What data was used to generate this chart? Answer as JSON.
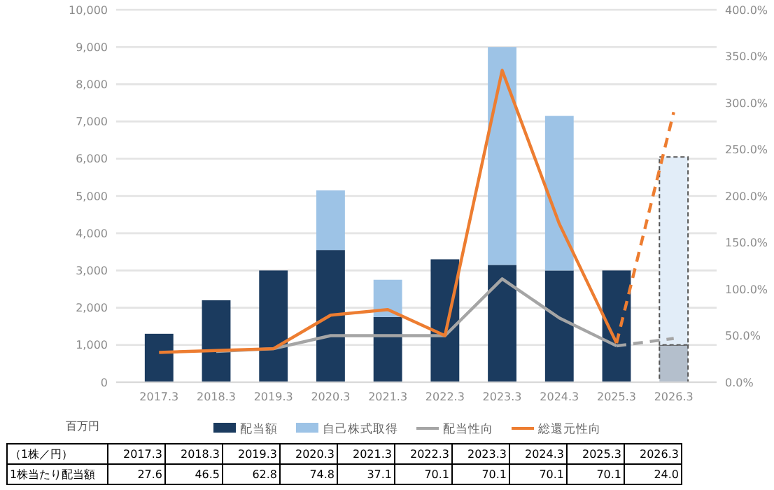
{
  "chart_data": {
    "type": "bar",
    "stacked": true,
    "ylabel": "百万円",
    "legend": "bottom",
    "grid": "y",
    "categories": [
      "2017.3",
      "2018.3",
      "2019.3",
      "2020.3",
      "2021.3",
      "2022.3",
      "2023.3",
      "2024.3",
      "2025.3",
      "2026.3"
    ],
    "ylim": [
      0,
      10000
    ],
    "yticks": [
      0,
      {
        "value": 1000,
        "label": "1,000"
      },
      {
        "value": 2000,
        "label": "2,000"
      },
      {
        "value": 3000,
        "label": "3,000"
      },
      {
        "value": 4000,
        "label": "4,000"
      },
      {
        "value": 5000,
        "label": "5,000"
      },
      {
        "value": 6000,
        "label": "6,000"
      },
      {
        "value": 7000,
        "label": "7,000"
      },
      {
        "value": 8000,
        "label": "8,000"
      },
      {
        "value": 9000,
        "label": "9,000"
      },
      {
        "value": 10000,
        "label": "10,000"
      }
    ],
    "y2lim": [
      0,
      400
    ],
    "y2ticks": [
      {
        "value": 0,
        "label": "0.0%"
      },
      {
        "value": 50,
        "label": "50.0%"
      },
      {
        "value": 100,
        "label": "100.0%"
      },
      {
        "value": 150,
        "label": "150.0%"
      },
      {
        "value": 200,
        "label": "200.0%"
      },
      {
        "value": 250,
        "label": "250.0%"
      },
      {
        "value": 300,
        "label": "300.0%"
      },
      {
        "value": 350,
        "label": "350.0%"
      },
      {
        "value": 400,
        "label": "400.0%"
      }
    ],
    "series": [
      {
        "name": "配当額",
        "color": "#1b3b5f",
        "colors": [
          "#1b3b5f",
          "#1b3b5f",
          "#1b3b5f",
          "#1b3b5f",
          "#1b3b5f",
          "#1b3b5f",
          "#1b3b5f",
          "#1b3b5f",
          "#1b3b5f",
          "#b4bfcc"
        ],
        "values": [
          1300,
          2200,
          3000,
          3550,
          1750,
          3300,
          3150,
          3000,
          3000,
          1000
        ]
      },
      {
        "name": "自己株式取得",
        "color": "#9dc3e6",
        "colors": [
          null,
          null,
          null,
          "#9dc3e6",
          "#9dc3e6",
          null,
          "#9dc3e6",
          "#9dc3e6",
          null,
          "#e2edf8"
        ],
        "values": [
          null,
          null,
          null,
          1600,
          1000,
          null,
          5850,
          4150,
          null,
          5050
        ]
      },
      {
        "name": "配当性向",
        "type": "line",
        "axis": "y2",
        "color": "#a5a5a5",
        "values": [
          null,
          33,
          36,
          50,
          50,
          50,
          111,
          69,
          39,
          null
        ]
      },
      {
        "type": "line",
        "axis": "y2",
        "color": "#a5a5a5",
        "line_style": "dashed",
        "x": [
          "2025.3",
          "2026.3"
        ],
        "values": [
          39,
          47
        ]
      },
      {
        "name": "総還元性向",
        "type": "line",
        "axis": "y2",
        "color": "#ed7d31",
        "values": [
          32,
          34,
          36,
          72,
          78,
          50,
          335,
          170,
          42,
          null
        ]
      },
      {
        "type": "line",
        "axis": "y2",
        "color": "#ed7d31",
        "line_style": "dashed",
        "x": [
          "2025.3",
          "2026.3"
        ],
        "values": [
          42,
          290
        ]
      }
    ],
    "annotations": [
      "（1株／円）",
      "2017.3",
      "2018.3",
      "2019.3",
      "2020.3",
      "2021.3",
      "2022.3",
      "2023.3",
      "2024.3",
      "2025.3",
      "2026.3",
      "1株当たり配当額",
      "27.6",
      "46.5",
      "62.8",
      "74.8",
      "37.1",
      "70.1",
      "70.1",
      "70.1",
      "70.1",
      "24.0"
    ]
  }
}
